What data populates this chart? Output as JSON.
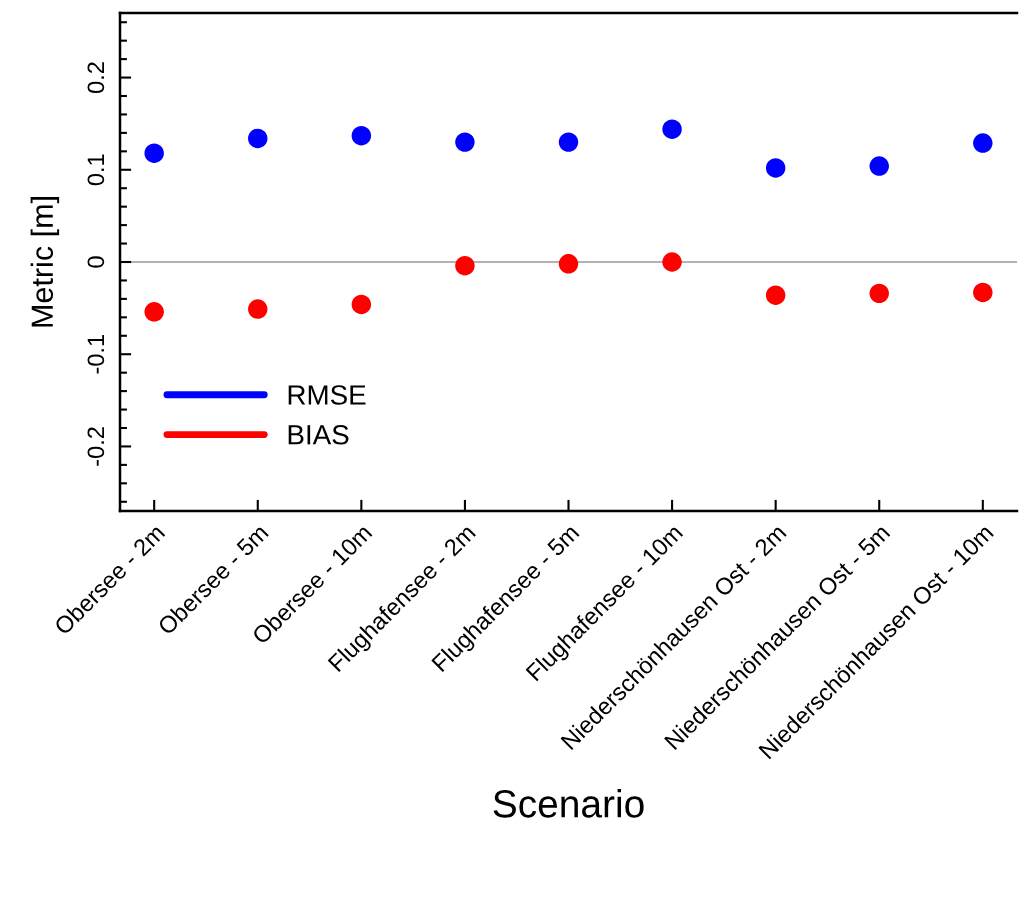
{
  "chart_data": {
    "type": "scatter",
    "xlabel": "Scenario",
    "ylabel": "Metric [m]",
    "categories": [
      "Obersee - 2m",
      "Obersee - 5m",
      "Obersee - 10m",
      "Flughafensee - 2m",
      "Flughafensee - 5m",
      "Flughafensee - 10m",
      "Niederschönhausen Ost - 2m",
      "Niederschönhausen Ost - 5m",
      "Niederschönhausen Ost - 10m"
    ],
    "series": [
      {
        "name": "RMSE",
        "color": "#0000ff",
        "values": [
          0.118,
          0.134,
          0.137,
          0.13,
          0.13,
          0.144,
          0.102,
          0.104,
          0.129
        ]
      },
      {
        "name": "BIAS",
        "color": "#ff0000",
        "values": [
          -0.054,
          -0.051,
          -0.046,
          -0.004,
          -0.002,
          0.0,
          -0.036,
          -0.034,
          -0.033
        ]
      }
    ],
    "ylim": [
      -0.27,
      0.27
    ],
    "yticks": [
      -0.2,
      -0.1,
      0,
      0.1,
      0.2
    ],
    "ref_lines": [
      {
        "axis": "y",
        "value": 0,
        "color": "#b3b3b3"
      }
    ],
    "legend": "bottom left",
    "marker": "circle",
    "grid": false
  }
}
